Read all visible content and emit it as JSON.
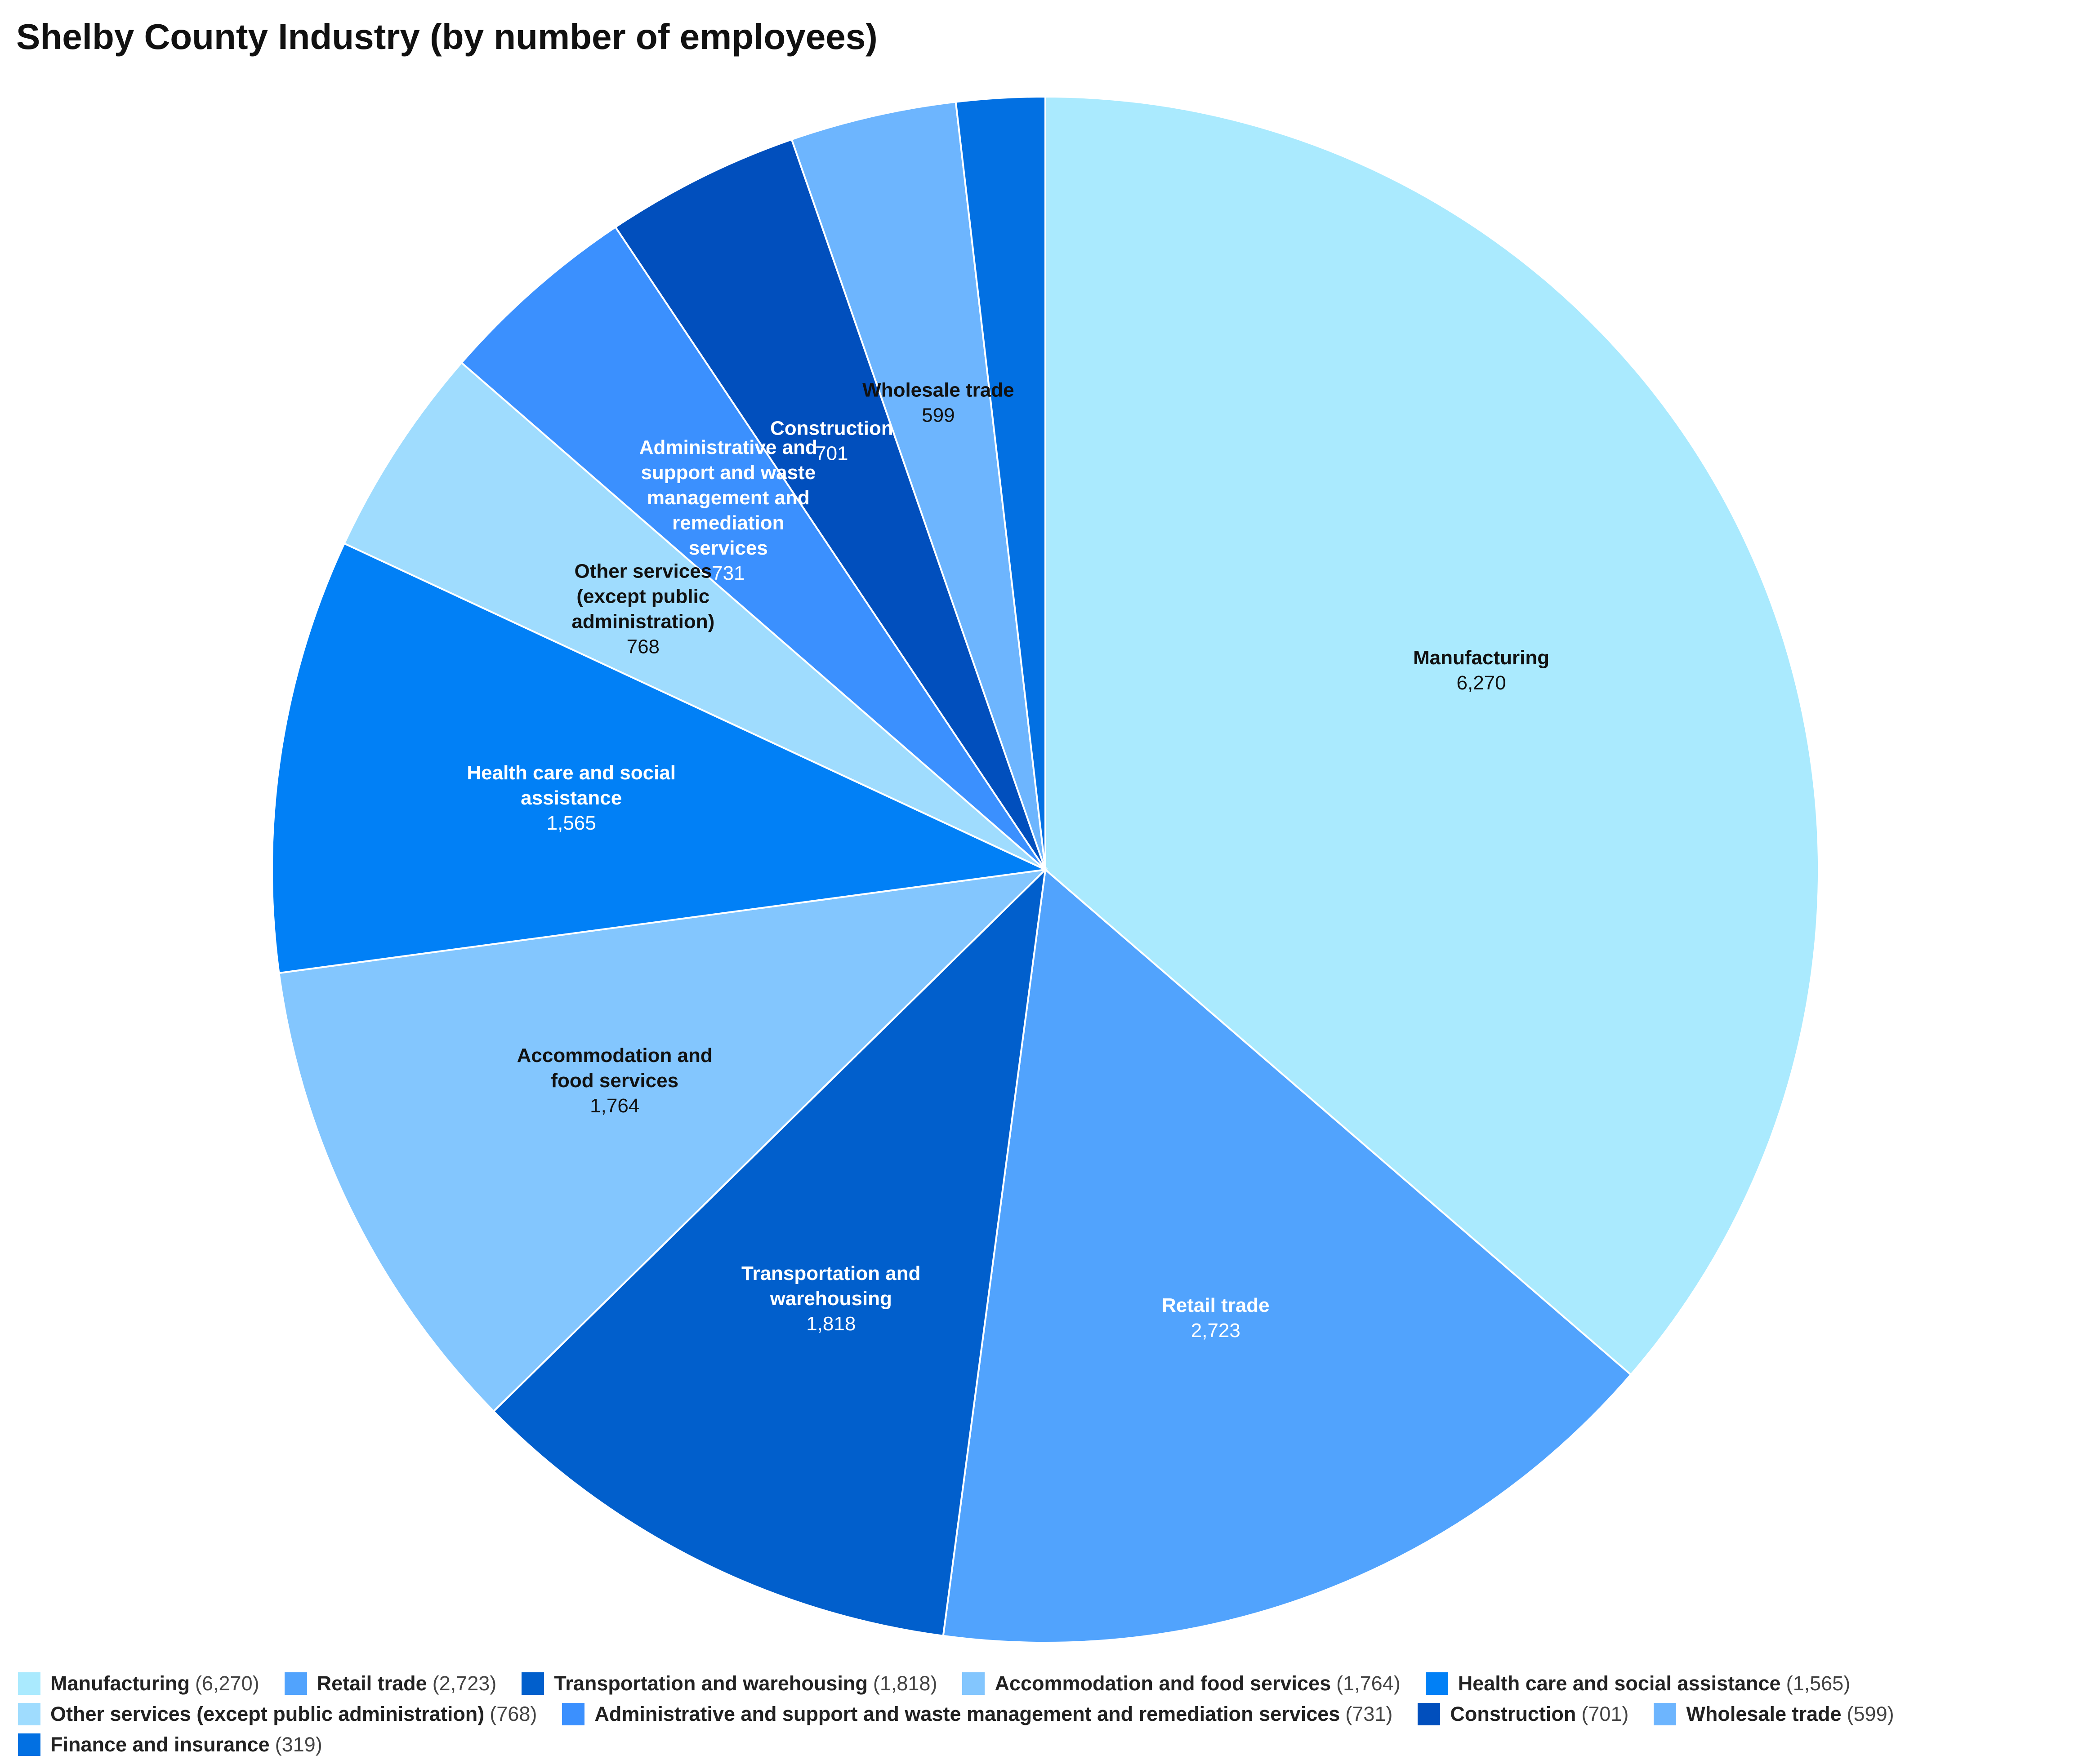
{
  "chart_data": {
    "type": "pie",
    "title": "Shelby County Industry (by number of employees)",
    "slices": [
      {
        "name": "Manufacturing",
        "label_lines": [
          "Manufacturing"
        ],
        "value": 6270,
        "value_label": "6,270",
        "legend_value": "(6,270)",
        "color": "#aaeafe",
        "label_color": "#111111"
      },
      {
        "name": "Retail trade",
        "label_lines": [
          "Retail trade"
        ],
        "value": 2723,
        "value_label": "2,723",
        "legend_value": "(2,723)",
        "color": "#51a3fd",
        "label_color": "#ffffff"
      },
      {
        "name": "Transportation and warehousing",
        "label_lines": [
          "Transportation and",
          "warehousing"
        ],
        "value": 1818,
        "value_label": "1,818",
        "legend_value": "(1,818)",
        "color": "#015fcc",
        "label_color": "#ffffff"
      },
      {
        "name": "Accommodation and food services",
        "label_lines": [
          "Accommodation and",
          "food services"
        ],
        "value": 1764,
        "value_label": "1,764",
        "legend_value": "(1,764)",
        "color": "#83c6fe",
        "label_color": "#111111"
      },
      {
        "name": "Health care and social assistance",
        "label_lines": [
          "Health care and social",
          "assistance"
        ],
        "value": 1565,
        "value_label": "1,565",
        "legend_value": "(1,565)",
        "color": "#0180f6",
        "label_color": "#ffffff"
      },
      {
        "name": "Other services (except public administration)",
        "label_lines": [
          "Other services",
          "(except public",
          "administration)"
        ],
        "value": 768,
        "value_label": "768",
        "legend_value": "(768)",
        "color": "#9fdcfe",
        "label_color": "#111111"
      },
      {
        "name": "Administrative and support and waste management and remediation services",
        "label_lines": [
          "Administrative and",
          "support and waste",
          "management and",
          "remediation",
          "services"
        ],
        "value": 731,
        "value_label": "731",
        "legend_value": "(731)",
        "color": "#3b90fe",
        "label_color": "#ffffff"
      },
      {
        "name": "Construction",
        "label_lines": [
          "Construction"
        ],
        "value": 701,
        "value_label": "701",
        "legend_value": "(701)",
        "color": "#014fbd",
        "label_color": "#ffffff"
      },
      {
        "name": "Wholesale trade",
        "label_lines": [
          "Wholesale trade"
        ],
        "value": 599,
        "value_label": "599",
        "legend_value": "(599)",
        "color": "#6db5fe",
        "label_color": "#111111"
      },
      {
        "name": "Finance and insurance",
        "label_lines": [],
        "value": 319,
        "value_label": "",
        "legend_value": "(319)",
        "color": "#0270e2",
        "label_color": "#ffffff"
      }
    ],
    "legend_position": "bottom"
  }
}
